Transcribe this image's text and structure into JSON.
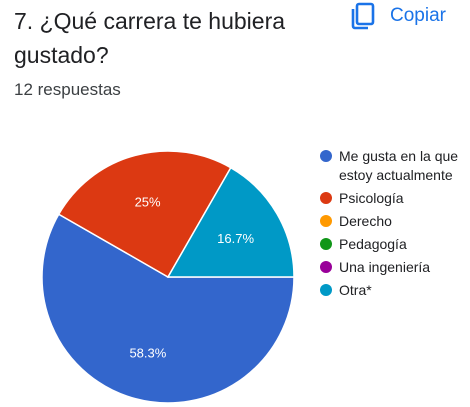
{
  "header": {
    "title": "7. ¿Qué carrera te hubiera gustado?",
    "copy_label": "Copiar",
    "copy_icon": "copy-icon"
  },
  "response_count": "12 respuestas",
  "chart_data": {
    "type": "pie",
    "title": "",
    "legend_position": "right",
    "categories": [
      "Me gusta en la que estoy actualmente",
      "Psicología",
      "Derecho",
      "Pedagogía",
      "Una ingeniería",
      "Otra*"
    ],
    "values": [
      58.3,
      25,
      0,
      0,
      0,
      16.7
    ],
    "value_labels": [
      "58.3%",
      "25%",
      "",
      "",
      "",
      "16.7%"
    ],
    "colors": [
      "#3366cc",
      "#dc3912",
      "#ff9900",
      "#109618",
      "#990099",
      "#0099c6"
    ]
  }
}
